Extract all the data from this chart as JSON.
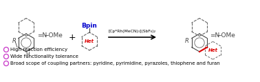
{
  "background_color": "#ffffff",
  "bullet_color": "#cc44cc",
  "bullet_texts": [
    "High reaction efficiency",
    "Wide functionality tolerance",
    "Broad scope of coupling partners: pyridine, pyrimidine, pyrazoles, thiophene and furan"
  ],
  "reagent_text": "[Cp*Rh(MeCN)₃](SbF₆)₂",
  "arrow_color": "#000000",
  "bpin_color": "#0000cc",
  "het_color": "#dd0000",
  "bond_color_red": "#dd0000",
  "ring_color": "#444444",
  "dashed_color": "#666666",
  "text_color": "#000000",
  "fig_w": 3.78,
  "fig_h": 1.19,
  "dpi": 100
}
